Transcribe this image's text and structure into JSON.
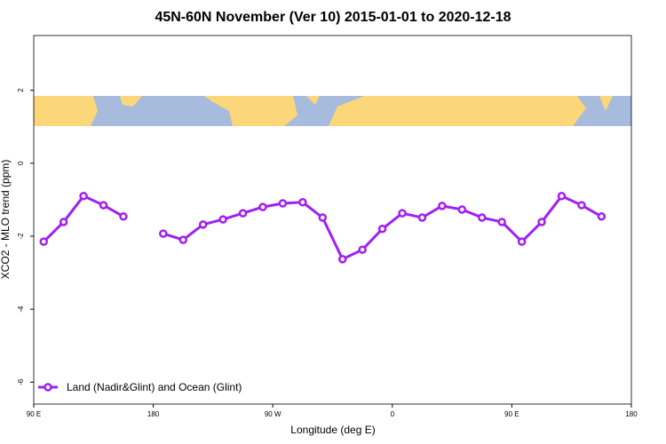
{
  "chart_data": {
    "type": "line",
    "title": "45N-60N November (Ver 10)   2015-01-01 to 2020-12-18",
    "x_label": "Longitude (deg E)",
    "y_label": "XCO2 - MLO trend (ppm)",
    "x": [
      97.5,
      112.5,
      127.5,
      142.5,
      157.5,
      172.5,
      187.5,
      202.5,
      217.5,
      232.5,
      247.5,
      262.5,
      277.5,
      292.5,
      307.5,
      322.5,
      337.5,
      352.5,
      367.5,
      382.5,
      397.5,
      412.5,
      427.5,
      442.5,
      457.5,
      472.5,
      487.5,
      502.5,
      517.5
    ],
    "series": [
      {
        "name": "Land (Nadir&Glint) and Ocean (Glint)",
        "color": "#a020f0",
        "values": [
          -2.15,
          -1.61,
          -0.9,
          -1.15,
          -1.46,
          null,
          -1.93,
          -2.1,
          -1.68,
          -1.54,
          -1.37,
          -1.2,
          -1.1,
          -1.07,
          -1.49,
          -2.63,
          -2.37,
          -1.8,
          -1.37,
          -1.49,
          -1.17,
          -1.27,
          -1.49,
          -1.61,
          -2.15,
          -1.61,
          -0.9,
          -1.15,
          -1.46
        ]
      }
    ],
    "xlim": [
      90,
      540
    ],
    "xticks": [
      {
        "value": 90,
        "label": "90 E"
      },
      180,
      {
        "value": 270,
        "label": "90 W"
      },
      {
        "value": 360,
        "label": "0"
      },
      {
        "value": 450,
        "label": "90 E"
      },
      {
        "value": 540,
        "label": "180"
      }
    ],
    "ylim": [
      -6.6,
      3.5
    ],
    "yticks": [
      -6,
      -4,
      -2,
      0,
      2
    ],
    "legend": "bottom-left"
  }
}
